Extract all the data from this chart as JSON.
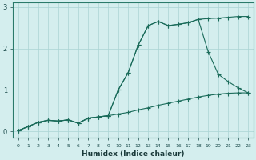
{
  "xlabel": "Humidex (Indice chaleur)",
  "background_color": "#d4eeee",
  "line_color": "#1a6b5a",
  "grid_color": "#aad4d4",
  "xlim": [
    -0.5,
    23.5
  ],
  "ylim": [
    -0.15,
    3.1
  ],
  "yticks": [
    0,
    1,
    2,
    3
  ],
  "xticks": [
    0,
    1,
    2,
    3,
    4,
    5,
    6,
    7,
    8,
    9,
    10,
    11,
    12,
    13,
    14,
    15,
    16,
    17,
    18,
    19,
    20,
    21,
    22,
    23
  ],
  "line1_x": [
    0,
    1,
    2,
    3,
    4,
    5,
    6,
    7,
    8,
    9,
    10,
    11,
    12,
    13,
    14,
    15,
    16,
    17,
    18,
    19,
    20,
    21,
    22,
    23
  ],
  "line1_y": [
    0.02,
    0.12,
    0.22,
    0.27,
    0.25,
    0.28,
    0.2,
    0.32,
    0.35,
    0.38,
    0.42,
    0.46,
    0.52,
    0.57,
    0.63,
    0.68,
    0.73,
    0.78,
    0.83,
    0.87,
    0.9,
    0.92,
    0.93,
    0.93
  ],
  "line2_x": [
    0,
    1,
    2,
    3,
    4,
    5,
    6,
    7,
    8,
    9,
    10,
    11,
    12,
    13,
    14,
    15,
    16,
    17,
    18,
    19,
    20,
    21,
    22,
    23
  ],
  "line2_y": [
    0.02,
    0.12,
    0.22,
    0.27,
    0.25,
    0.28,
    0.2,
    0.32,
    0.35,
    0.38,
    1.0,
    1.42,
    2.08,
    2.55,
    2.65,
    2.55,
    2.58,
    2.62,
    2.7,
    1.92,
    1.38,
    1.2,
    1.05,
    0.93
  ],
  "line3_x": [
    0,
    1,
    2,
    3,
    4,
    5,
    6,
    7,
    8,
    9,
    10,
    11,
    12,
    13,
    14,
    15,
    16,
    17,
    18,
    19,
    20,
    21,
    22,
    23
  ],
  "line3_y": [
    0.02,
    0.12,
    0.22,
    0.27,
    0.25,
    0.28,
    0.2,
    0.32,
    0.35,
    0.38,
    1.0,
    1.42,
    2.08,
    2.55,
    2.65,
    2.55,
    2.58,
    2.62,
    2.7,
    2.72,
    2.73,
    2.75,
    2.77,
    2.77
  ]
}
